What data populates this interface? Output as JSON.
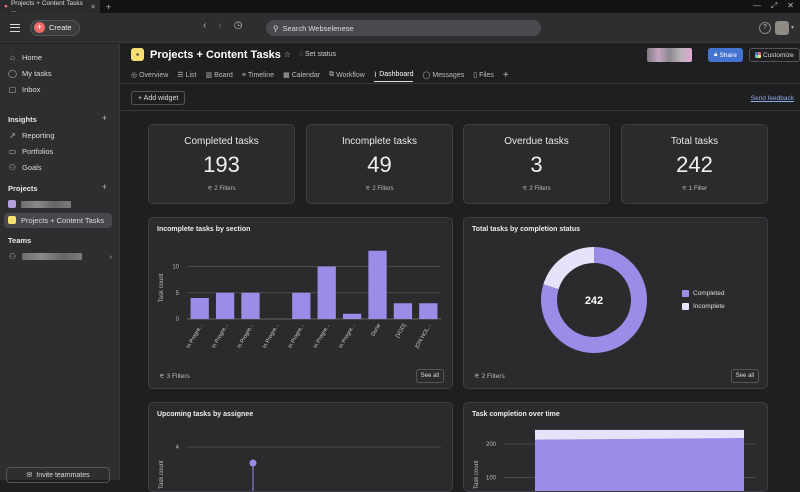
{
  "browser": {
    "tab_title": "Projects + Content Tasks ...",
    "new_tab": "+"
  },
  "topbar": {
    "create_label": "Create",
    "search_placeholder": "Search Webselenese"
  },
  "sidebar": {
    "nav": [
      {
        "label": "Home",
        "icon": "home-icon"
      },
      {
        "label": "My tasks",
        "icon": "check-circle-icon"
      },
      {
        "label": "Inbox",
        "icon": "bell-icon"
      }
    ],
    "insights_heading": "Insights",
    "insights": [
      {
        "label": "Reporting",
        "icon": "chart-line-icon"
      },
      {
        "label": "Portfolios",
        "icon": "folder-icon"
      },
      {
        "label": "Goals",
        "icon": "person-icon"
      }
    ],
    "projects_heading": "Projects",
    "projects": [
      {
        "label": "Projects + Content Tasks",
        "color": "#f8df72"
      }
    ],
    "teams_heading": "Teams",
    "invite_label": "Invite teammates"
  },
  "header": {
    "project_title": "Projects + Content Tasks",
    "set_status": "Set status",
    "share_label": "Share",
    "customize_label": "Customize",
    "tabs": [
      {
        "label": "Overview",
        "icon": "overview-icon"
      },
      {
        "label": "List",
        "icon": "list-icon"
      },
      {
        "label": "Board",
        "icon": "board-icon"
      },
      {
        "label": "Timeline",
        "icon": "timeline-icon"
      },
      {
        "label": "Calendar",
        "icon": "calendar-icon"
      },
      {
        "label": "Workflow",
        "icon": "workflow-icon"
      },
      {
        "label": "Dashboard",
        "icon": "dashboard-icon",
        "active": true
      },
      {
        "label": "Messages",
        "icon": "message-icon"
      },
      {
        "label": "Files",
        "icon": "file-icon"
      }
    ]
  },
  "toolbar": {
    "add_widget": "+ Add widget",
    "feedback": "Send feedback"
  },
  "kpis": [
    {
      "title": "Completed tasks",
      "value": "193",
      "filter": "2 Filters"
    },
    {
      "title": "Incomplete tasks",
      "value": "49",
      "filter": "2 Filters"
    },
    {
      "title": "Overdue tasks",
      "value": "3",
      "filter": "2 Filters"
    },
    {
      "title": "Total tasks",
      "value": "242",
      "filter": "1 Filter"
    }
  ],
  "widgets": {
    "by_section": {
      "title": "Incomplete tasks by section",
      "filter": "3 Filters",
      "see_all": "See all"
    },
    "by_status": {
      "title": "Total tasks by completion status",
      "filter": "2 Filters",
      "see_all": "See all",
      "center_label": "242"
    },
    "by_assignee": {
      "title": "Upcoming tasks by assignee"
    },
    "over_time": {
      "title": "Task completion over time"
    }
  },
  "chart_data": [
    {
      "type": "bar",
      "title": "Incomplete tasks by section",
      "ylabel": "Task count",
      "ylim": [
        0,
        12
      ],
      "yticks": [
        0,
        5,
        10
      ],
      "categories": [
        "In Progre...",
        "In Progre...",
        "In Progre...",
        "In Progre...",
        "In Progre...",
        "In Progre...",
        "In Progre...",
        "Done",
        "[VOD]",
        "[ON HOL..."
      ],
      "values": [
        4,
        5,
        5,
        0,
        5,
        10,
        1,
        13,
        3,
        3
      ],
      "color": "#9b8ce8"
    },
    {
      "type": "pie",
      "title": "Total tasks by completion status",
      "categories": [
        "Completed",
        "Incomplete"
      ],
      "values": [
        193,
        49
      ],
      "colors": [
        "#9b8ce8",
        "#e6e2f9"
      ],
      "legend": "right"
    },
    {
      "type": "scatter",
      "title": "Upcoming tasks by assignee",
      "ylabel": "Task count",
      "yticks": [
        4
      ],
      "values": [
        3
      ],
      "color": "#9b8ce8"
    },
    {
      "type": "area",
      "title": "Task completion over time",
      "ylabel": "Task count",
      "yticks": [
        100,
        200
      ],
      "series": [
        {
          "values": [
            213,
            218
          ]
        },
        {
          "values": [
            242,
            242
          ]
        }
      ],
      "colors": [
        "#9b8ce8",
        "#e6e2f9"
      ]
    }
  ]
}
